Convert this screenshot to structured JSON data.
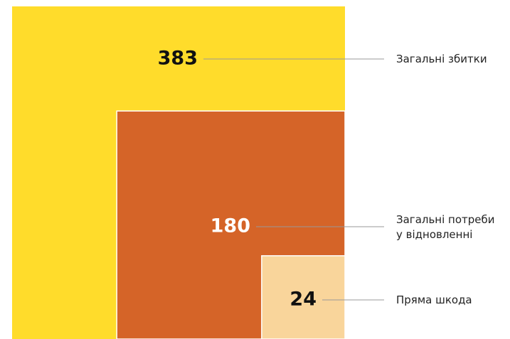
{
  "chart_data": {
    "type": "nested-square",
    "categories": [
      "Загальні збитки",
      "Загальні потреби\nу відновленні",
      "Пряма шкода"
    ],
    "values": [
      383,
      180,
      24
    ],
    "colors": [
      "#FFDC2B",
      "#D56428",
      "#F9D59B"
    ]
  }
}
